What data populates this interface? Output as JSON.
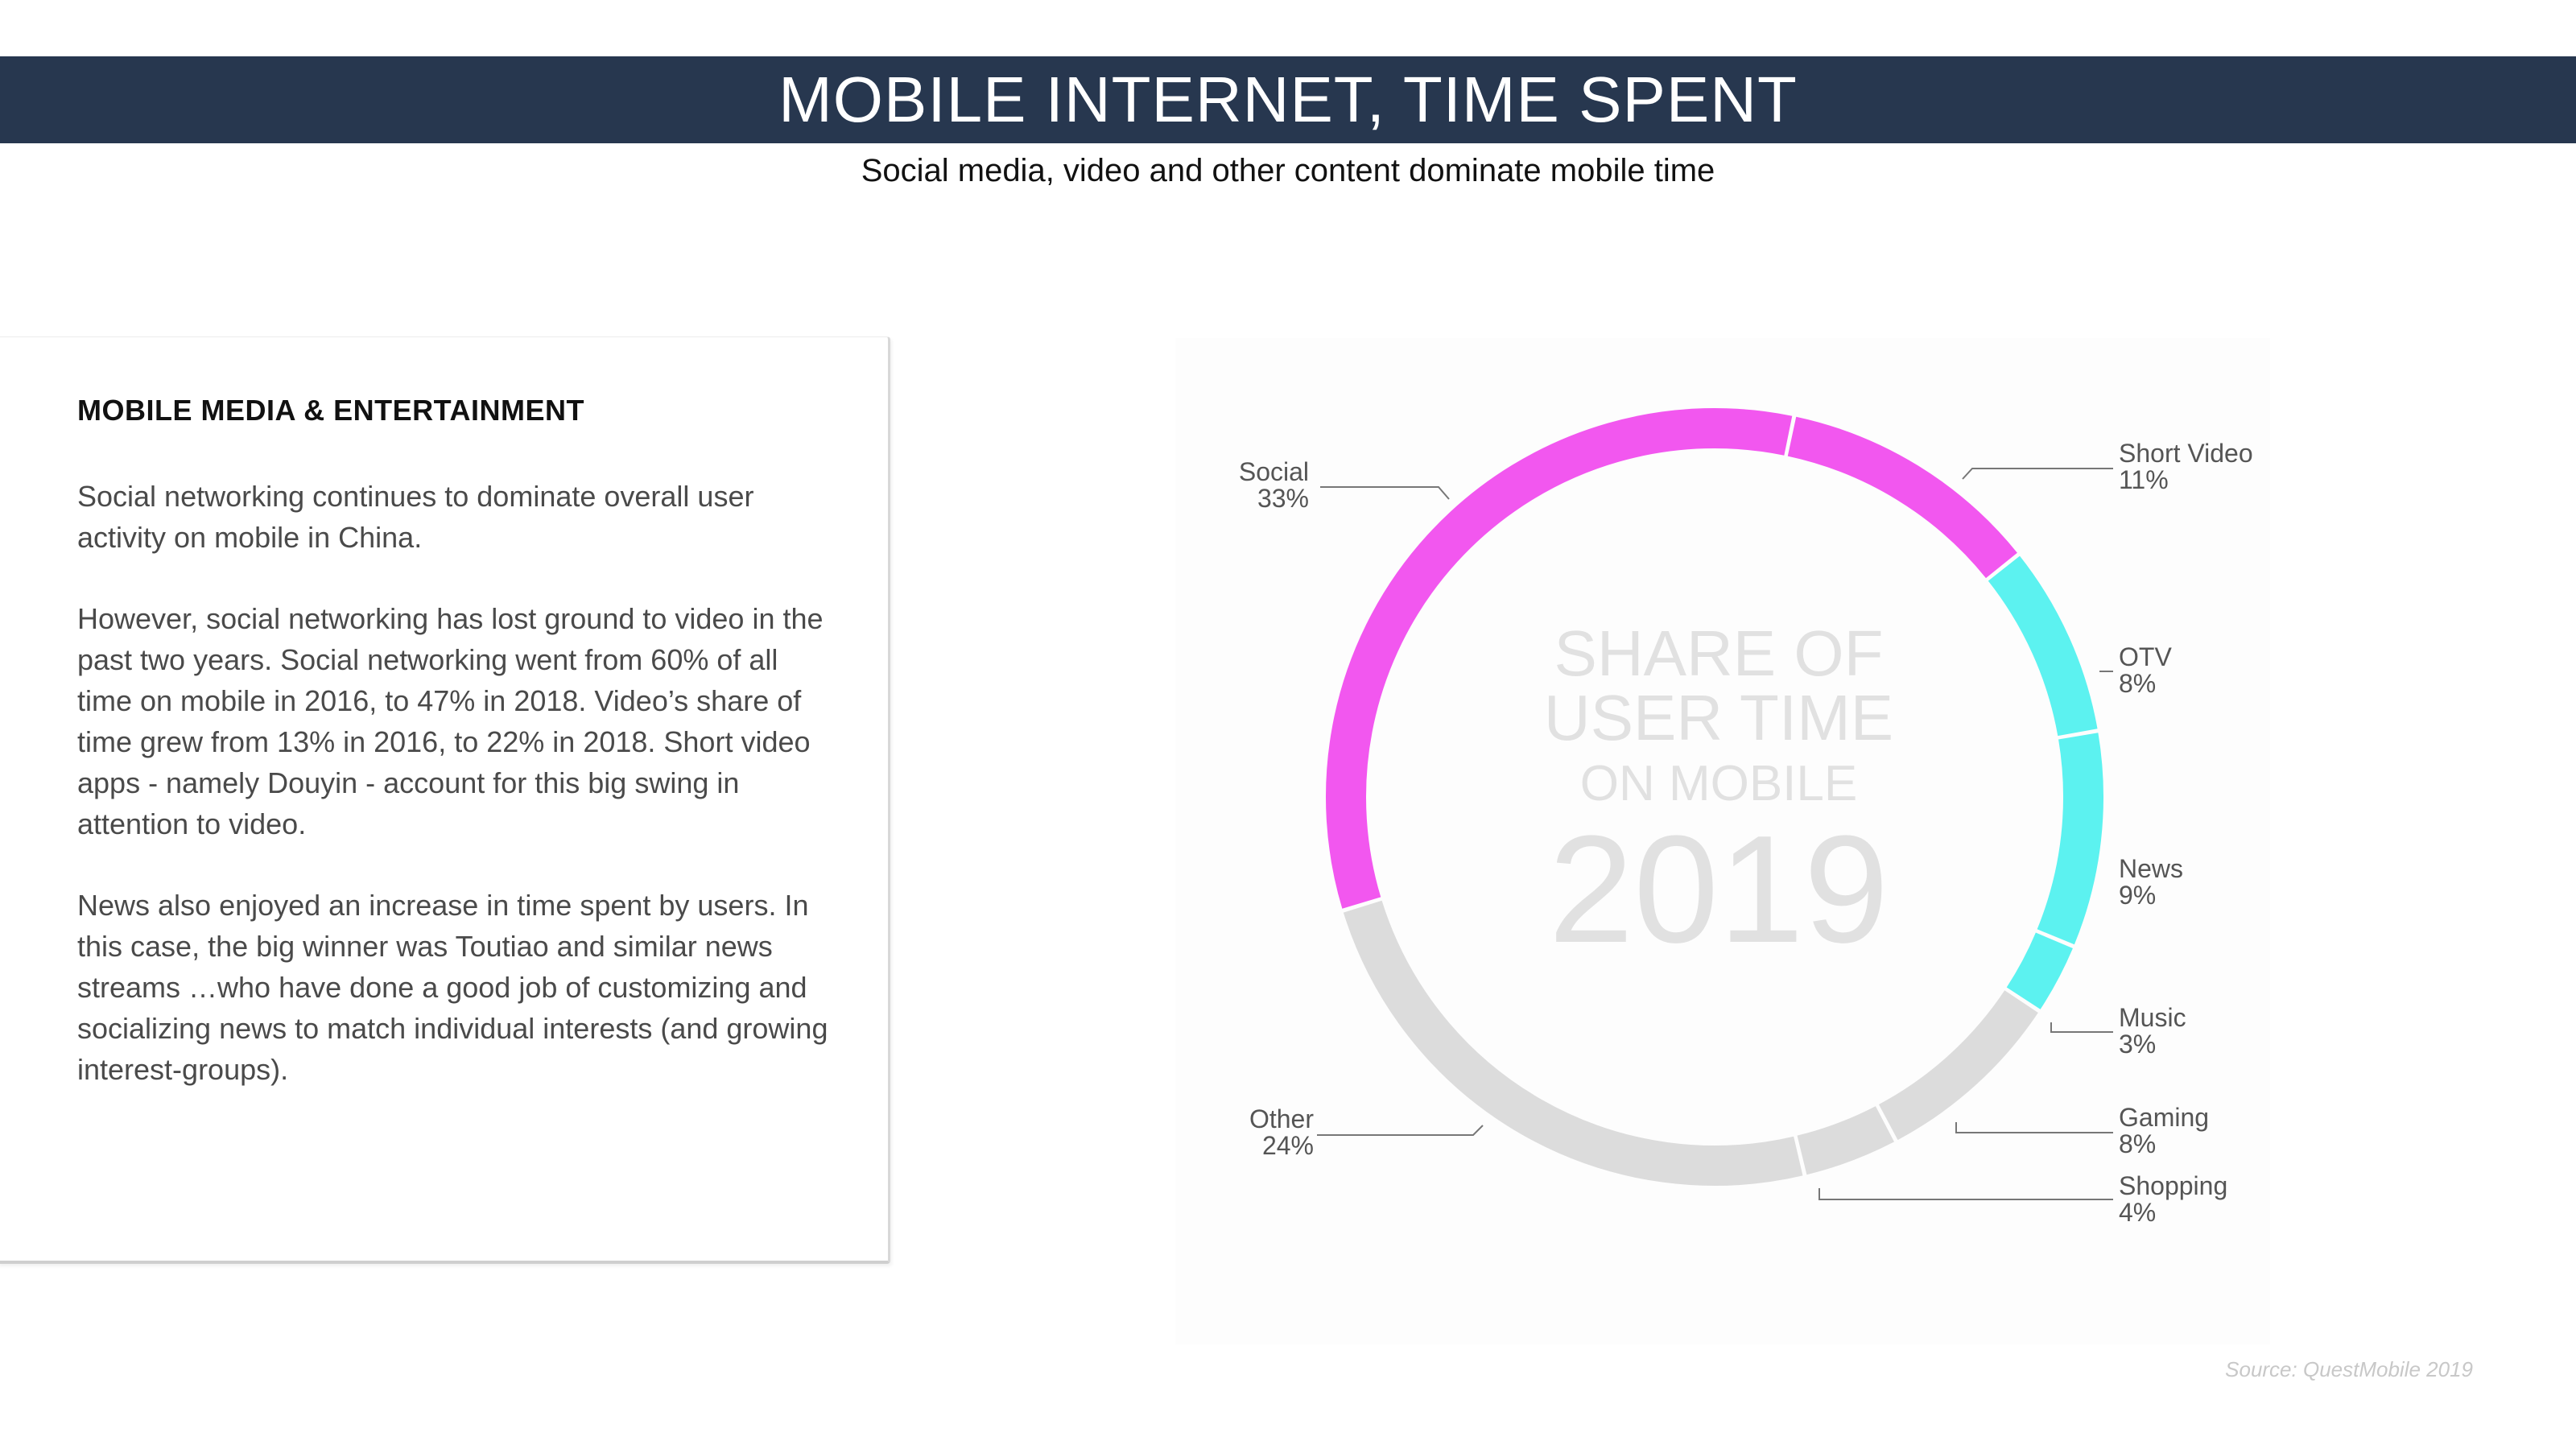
{
  "header": {
    "title": "MOBILE INTERNET, TIME SPENT",
    "subtitle": "Social media, video and other content dominate mobile time"
  },
  "card": {
    "heading": "MOBILE MEDIA & ENTERTAINMENT",
    "paragraphs": [
      "Social networking continues to dominate overall user activity on mobile in China.",
      "However, social networking has lost ground to video in the past two years. Social networking went from 60% of all time on mobile in 2016, to 47% in 2018. Video’s share of time grew from 13% in 2016, to 22% in 2018. Short video apps - namely Douyin - account for this big swing in attention to video.",
      "News also enjoyed an increase in time spent by users. In this case, the big winner was Toutiao and similar news streams …who have done a good job of customizing and socializing news to match individual interests (and growing interest-groups)."
    ]
  },
  "chart_data": {
    "type": "pie",
    "title": "",
    "center_text": [
      "SHARE OF",
      "USER TIME",
      "ON MOBILE",
      "2019"
    ],
    "series": [
      {
        "name": "Social",
        "value": 33,
        "label": "33%",
        "color": "#f257ef"
      },
      {
        "name": "Short Video",
        "value": 11,
        "label": "11%",
        "color": "#f257ef"
      },
      {
        "name": "OTV",
        "value": 8,
        "label": "8%",
        "color": "#5cf2f0"
      },
      {
        "name": "News",
        "value": 9,
        "label": "9%",
        "color": "#5cf2f0"
      },
      {
        "name": "Music",
        "value": 3,
        "label": "3%",
        "color": "#5cf2f0"
      },
      {
        "name": "Gaming",
        "value": 8,
        "label": "8%",
        "color": "#dcdcdc"
      },
      {
        "name": "Shopping",
        "value": 4,
        "label": "4%",
        "color": "#dcdcdc"
      },
      {
        "name": "Other",
        "value": 24,
        "label": "24%",
        "color": "#dcdcdc"
      }
    ],
    "start_angle_deg": -107
  },
  "footer": {
    "source": "Source: QuestMobile 2019"
  }
}
